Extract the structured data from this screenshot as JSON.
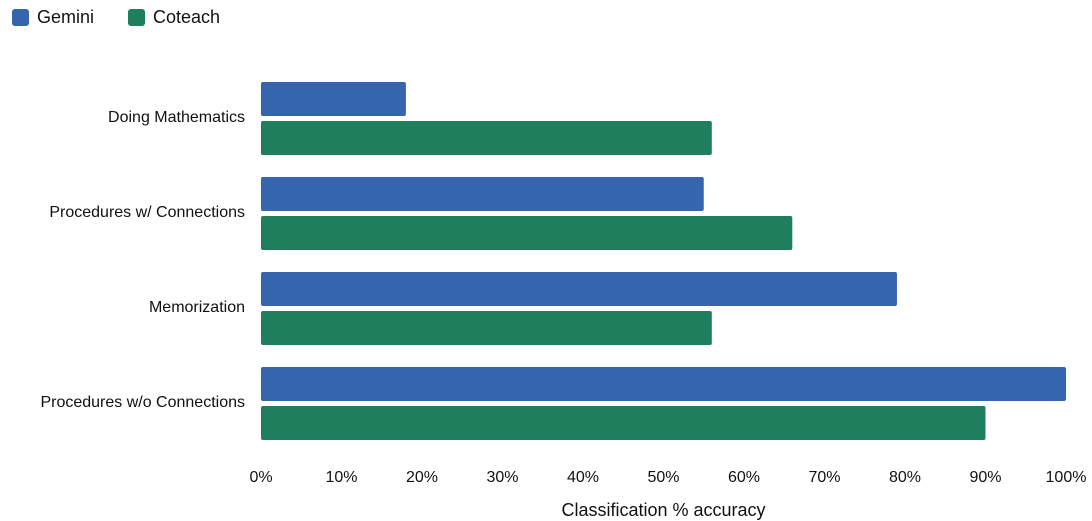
{
  "chart_data": {
    "type": "bar",
    "orientation": "horizontal",
    "categories": [
      "Doing Mathematics",
      "Procedures w/ Connections",
      "Memorization",
      "Procedures w/o Connections"
    ],
    "series": [
      {
        "name": "Gemini",
        "color": "#3465ae",
        "values": [
          18,
          55,
          79,
          100
        ]
      },
      {
        "name": "Coteach",
        "color": "#1f7f5c",
        "values": [
          56,
          66,
          56,
          90
        ]
      }
    ],
    "xlabel": "Classification % accuracy",
    "xlim": [
      0,
      100
    ],
    "xticks": [
      "0%",
      "10%",
      "20%",
      "30%",
      "40%",
      "50%",
      "60%",
      "70%",
      "80%",
      "90%",
      "100%"
    ],
    "grid": false,
    "legend": "top-left"
  }
}
